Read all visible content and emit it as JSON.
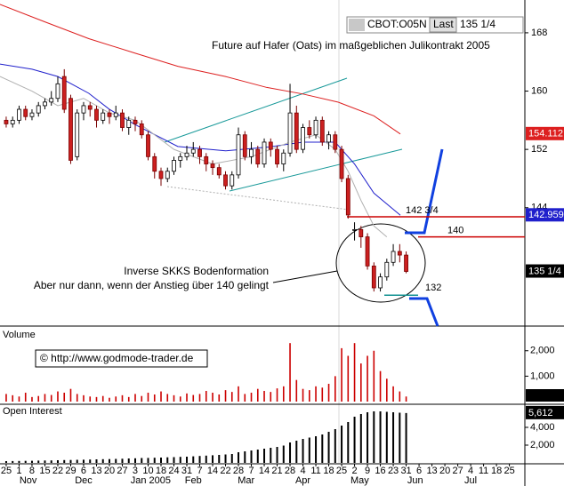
{
  "chart_data": {
    "type": "candlestick",
    "symbol": "CBOT:O05N",
    "last_label": "Last",
    "last": {
      "value": 135.25,
      "label": "135 1/4"
    },
    "title": "Future auf Hafer (Oats) im maßgeblichen Julikontrakt 2005",
    "annotation": [
      "Inverse SKKS Bodenformation",
      "Aber nur dann, wenn der Anstieg über 140 gelingt"
    ],
    "copyright": "© http://www.godmode-trader.de",
    "x": [
      0,
      0.5,
      1,
      1.5,
      2,
      2.5,
      3,
      3.5,
      4,
      4.5,
      5,
      5.5,
      6,
      6.5,
      7,
      7.5,
      8,
      8.5,
      9,
      9.5,
      10,
      10.5,
      11,
      11.5,
      12,
      12.5,
      13,
      13.5,
      14,
      14.5,
      15,
      15.5,
      16,
      16.5,
      17,
      17.5,
      18,
      18.5,
      19,
      19.5,
      20,
      20.5,
      21,
      21.5,
      22,
      22.5,
      23,
      23.5,
      24,
      24.5,
      25,
      25.5,
      26,
      26.5,
      27,
      27.5,
      28,
      28.5,
      29,
      29.5,
      30,
      30.5,
      31
    ],
    "open": [
      156,
      155.5,
      156,
      157.5,
      156.5,
      157,
      158,
      158.5,
      159,
      162,
      159,
      151,
      157,
      158,
      157.5,
      156,
      157,
      156.5,
      157,
      155,
      156,
      155.5,
      154,
      151,
      149,
      148,
      149,
      150.5,
      151,
      151.5,
      152,
      151,
      150,
      149.5,
      148.5,
      147,
      148.5,
      154,
      151,
      152,
      150,
      153,
      152,
      150,
      151.5,
      157,
      152,
      155,
      154,
      156,
      153,
      154,
      152,
      148,
      141,
      141,
      140,
      136,
      133,
      134.5,
      136.5,
      138,
      137.5
    ],
    "high": [
      156.5,
      156.5,
      158,
      158,
      157.5,
      158.5,
      159,
      160,
      162,
      163,
      159.5,
      157.5,
      158.5,
      158.5,
      158,
      157.5,
      157.5,
      158,
      157.5,
      156.5,
      156.5,
      156,
      154.5,
      151.5,
      149.5,
      149.5,
      151,
      151.5,
      152.5,
      153,
      152.5,
      151.5,
      150.5,
      150,
      149,
      149,
      155,
      154.5,
      153,
      152.5,
      153.5,
      153.5,
      152.5,
      152,
      161,
      158,
      155.5,
      156,
      156.5,
      156.5,
      154.5,
      154.5,
      152.5,
      148.5,
      142,
      141.5,
      140.5,
      136.5,
      135,
      137,
      139,
      139,
      138
    ],
    "low": [
      155,
      155,
      155.5,
      156,
      156,
      156.5,
      157.5,
      158,
      158.5,
      157,
      150,
      150.5,
      156,
      156.5,
      155,
      155.5,
      155.5,
      156,
      154.5,
      154,
      154.5,
      153.5,
      150.5,
      148,
      147,
      147.5,
      148.5,
      149.5,
      150.5,
      151,
      150,
      149,
      148.5,
      148,
      146.5,
      146.5,
      148,
      150.5,
      150,
      149.5,
      149.5,
      151,
      149.5,
      149,
      151,
      151.5,
      151.5,
      153.5,
      153.5,
      152.5,
      152,
      151.5,
      147.5,
      142.5,
      139.5,
      138.5,
      135.5,
      132.5,
      132.5,
      134,
      136,
      136.5,
      135
    ],
    "close": [
      155.5,
      156,
      157.5,
      156.5,
      157,
      158,
      158.5,
      159,
      161,
      157.5,
      150.5,
      157,
      158,
      157.5,
      156,
      157,
      156.5,
      157,
      155,
      156,
      155.5,
      154,
      151,
      149,
      148,
      149,
      150.5,
      151,
      151.5,
      152,
      151,
      150,
      149.5,
      148.5,
      147,
      148.5,
      154,
      151,
      152,
      150,
      153,
      152,
      150,
      151.5,
      157,
      152,
      155,
      154,
      156,
      153,
      154,
      152,
      148,
      143,
      141,
      140,
      136,
      133,
      134.5,
      136.5,
      138,
      137.5,
      135.25
    ],
    "up_color": "#ffffff",
    "down_color": "#cc2020",
    "xlim": [
      -0.48,
      40.2
    ],
    "ylim": [
      128,
      172.5
    ],
    "yticks": [
      144,
      152,
      160,
      168
    ],
    "xticks": [
      {
        "value": 0,
        "label": "25"
      },
      {
        "value": 1,
        "label": "1"
      },
      {
        "value": 2,
        "label": "8"
      },
      {
        "value": 3,
        "label": "15"
      },
      {
        "value": 4,
        "label": "22"
      },
      {
        "value": 5,
        "label": "29"
      },
      {
        "value": 6,
        "label": "6"
      },
      {
        "value": 7,
        "label": "13"
      },
      {
        "value": 8,
        "label": "20"
      },
      {
        "value": 9,
        "label": "27"
      },
      {
        "value": 10,
        "label": "3"
      },
      {
        "value": 11,
        "label": "10"
      },
      {
        "value": 12,
        "label": "18"
      },
      {
        "value": 13,
        "label": "24"
      },
      {
        "value": 14,
        "label": "31"
      },
      {
        "value": 15,
        "label": "7"
      },
      {
        "value": 16,
        "label": "14"
      },
      {
        "value": 17,
        "label": "22"
      },
      {
        "value": 18,
        "label": "28"
      },
      {
        "value": 19,
        "label": "7"
      },
      {
        "value": 20,
        "label": "14"
      },
      {
        "value": 21,
        "label": "21"
      },
      {
        "value": 22,
        "label": "28"
      },
      {
        "value": 23,
        "label": "4"
      },
      {
        "value": 24,
        "label": "11"
      },
      {
        "value": 25,
        "label": "18"
      },
      {
        "value": 26,
        "label": "25"
      },
      {
        "value": 27,
        "label": "2"
      },
      {
        "value": 28,
        "label": "9"
      },
      {
        "value": 29,
        "label": "16"
      },
      {
        "value": 30,
        "label": "23"
      },
      {
        "value": 31,
        "label": "31"
      },
      {
        "value": 32,
        "label": "6"
      },
      {
        "value": 33,
        "label": "13"
      },
      {
        "value": 34,
        "label": "20"
      },
      {
        "value": 35,
        "label": "27"
      },
      {
        "value": 36,
        "label": "4"
      },
      {
        "value": 37,
        "label": "11"
      },
      {
        "value": 38,
        "label": "18"
      },
      {
        "value": 39,
        "label": "25"
      }
    ],
    "months": [
      {
        "value": 1.7,
        "label": "Nov"
      },
      {
        "value": 6,
        "label": "Dec"
      },
      {
        "value": 11.2,
        "label": "Jan 2005"
      },
      {
        "value": 14.5,
        "label": "Feb"
      },
      {
        "value": 18.6,
        "label": "Mar"
      },
      {
        "value": 23,
        "label": "Apr"
      },
      {
        "value": 27.4,
        "label": "May"
      },
      {
        "value": 31.7,
        "label": "Jun"
      },
      {
        "value": 36,
        "label": "Jul"
      }
    ],
    "overlays": [
      {
        "color": "#dd2020",
        "x": [
          -0.48,
          3,
          6.4,
          10,
          13.3,
          17,
          20.2,
          23,
          25.7,
          28.5,
          30.55
        ],
        "values": [
          171.9,
          169.5,
          167.2,
          165.2,
          163.4,
          162,
          160.5,
          159.6,
          158.5,
          156.6,
          154.112
        ]
      },
      {
        "color": "#2020cc",
        "x": [
          -0.48,
          2,
          4,
          6.4,
          8,
          10,
          13.3,
          17,
          20.2,
          23,
          25.5,
          27,
          28.5,
          30.55
        ],
        "values": [
          163.7,
          163,
          162,
          159.7,
          157.5,
          155.4,
          152.4,
          151.8,
          152.3,
          153,
          153,
          150,
          146,
          142.959
        ]
      },
      {
        "color": "#b0b0b0",
        "x": [
          -0.48,
          2,
          4,
          6,
          8,
          10,
          13,
          16,
          19,
          22,
          24,
          25.5,
          26.5,
          27.5,
          28.5,
          29.5
        ],
        "values": [
          162,
          160,
          158,
          159,
          157,
          156,
          152,
          150,
          151,
          153,
          154,
          152,
          149,
          145,
          141.5,
          140
        ]
      }
    ],
    "levels": [
      {
        "value": 142.75,
        "label": "142 3/4",
        "color": "#cc0000"
      },
      {
        "value": 140,
        "label": "140",
        "color": "#cc0000"
      },
      {
        "value": 132,
        "label": "132",
        "color": "#109090"
      }
    ],
    "volume": {
      "label": "Volume",
      "color": "#cc0000",
      "ylim": [
        0,
        2900
      ],
      "yticks": [
        {
          "value": 1000,
          "label": "1,000"
        },
        {
          "value": 2000,
          "label": "2,000"
        }
      ],
      "values": [
        300,
        250,
        200,
        350,
        180,
        220,
        300,
        260,
        400,
        350,
        500,
        300,
        250,
        200,
        180,
        220,
        150,
        200,
        250,
        180,
        300,
        220,
        350,
        280,
        400,
        300,
        250,
        200,
        320,
        260,
        300,
        420,
        350,
        280,
        450,
        380,
        600,
        300,
        350,
        500,
        420,
        380,
        520,
        600,
        2300,
        850,
        500,
        450,
        600,
        550,
        700,
        1000,
        2100,
        1800,
        2300,
        1500,
        1800,
        2000,
        1200,
        900,
        600,
        400,
        200
      ]
    },
    "open_interest": {
      "label": "Open Interest",
      "color": "#000000",
      "ylim": [
        0,
        6300
      ],
      "yticks": [
        {
          "value": 2000,
          "label": "2,000"
        },
        {
          "value": 4000,
          "label": "4,000"
        }
      ],
      "last": {
        "value": 5612,
        "label": "5,612"
      },
      "values": [
        200,
        210,
        220,
        230,
        240,
        260,
        270,
        280,
        300,
        320,
        330,
        350,
        360,
        380,
        400,
        420,
        430,
        450,
        470,
        500,
        520,
        550,
        560,
        580,
        600,
        630,
        650,
        680,
        700,
        740,
        780,
        820,
        860,
        900,
        950,
        1000,
        1200,
        1300,
        1400,
        1500,
        1600,
        1700,
        1800,
        1950,
        2300,
        2500,
        2700,
        2850,
        3000,
        3200,
        3500,
        3800,
        4200,
        4600,
        5200,
        5500,
        5700,
        5800,
        5800,
        5750,
        5700,
        5650,
        5612
      ]
    }
  }
}
